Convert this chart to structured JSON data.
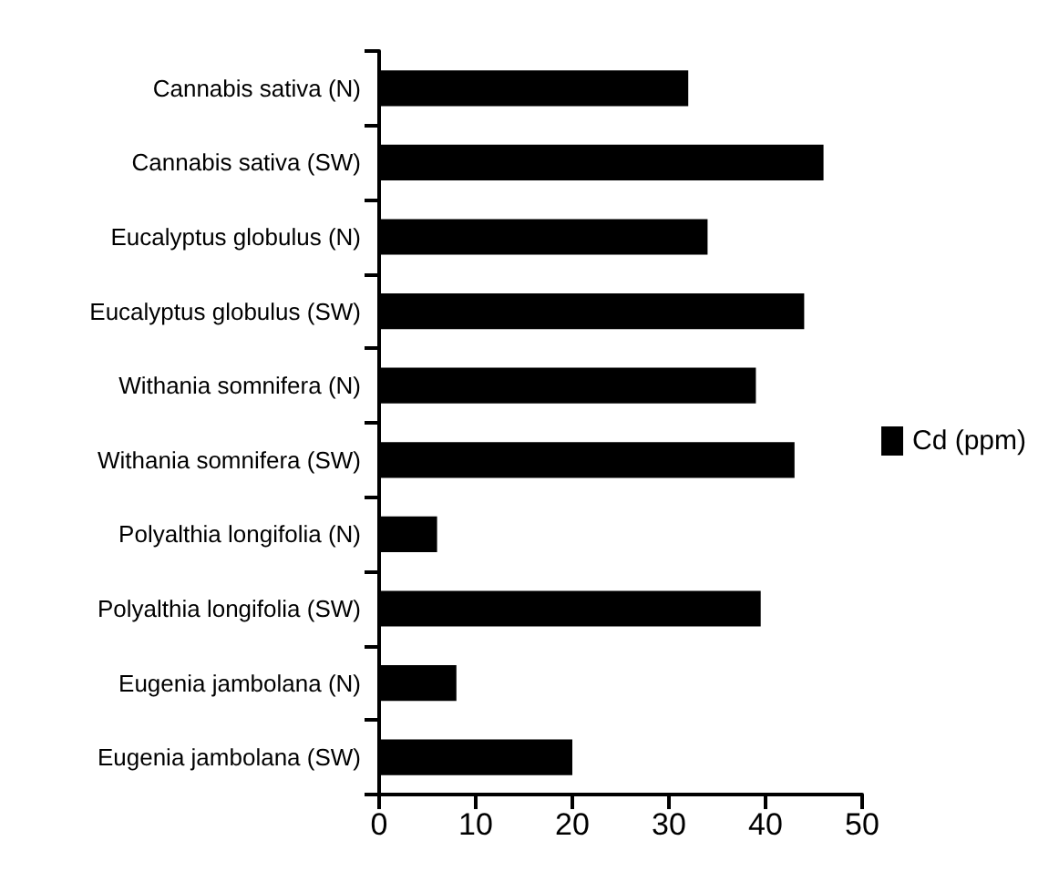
{
  "chart_data": {
    "type": "bar",
    "orientation": "horizontal",
    "categories": [
      "Cannabis sativa (N)",
      "Cannabis sativa (SW)",
      "Eucalyptus globulus (N)",
      "Eucalyptus globulus (SW)",
      "Withania somnifera (N)",
      "Withania somnifera (SW)",
      "Polyalthia longifolia (N)",
      "Polyalthia longifolia (SW)",
      "Eugenia jambolana (N)",
      "Eugenia jambolana (SW)"
    ],
    "series": [
      {
        "name": "Cd (ppm)",
        "color": "#000000",
        "values": [
          32,
          46,
          34,
          44,
          39,
          43,
          6,
          39.5,
          8,
          20
        ]
      }
    ],
    "xlim": [
      0,
      50
    ],
    "xticks": [
      0,
      10,
      20,
      30,
      40,
      50
    ],
    "grid": false,
    "legend": "right"
  }
}
